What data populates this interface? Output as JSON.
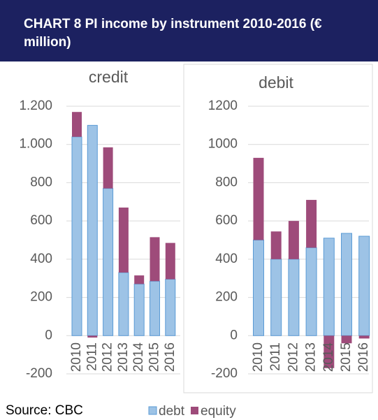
{
  "title": "CHART 8   PI income by instrument 2010-2016 (€ million)",
  "source": "Source: CBC",
  "chart_data": [
    {
      "type": "bar",
      "stacked": true,
      "title": "credit",
      "categories": [
        "2010",
        "2011",
        "2012",
        "2013",
        "2014",
        "2015",
        "2016"
      ],
      "series": [
        {
          "name": "debt",
          "color": "#9dc3e6",
          "values": [
            1040,
            1100,
            770,
            330,
            270,
            285,
            295
          ]
        },
        {
          "name": "equity",
          "color": "#9e4b7a",
          "values": [
            130,
            -10,
            215,
            340,
            45,
            230,
            190
          ]
        }
      ],
      "ylim": [
        -200,
        1200
      ],
      "yticks": [
        -200,
        0,
        200,
        400,
        600,
        800,
        {
          "value": 1000,
          "label": "1.000"
        },
        {
          "value": 1200,
          "label": "1.200"
        }
      ],
      "grid": true
    },
    {
      "type": "bar",
      "stacked": true,
      "title": "debit",
      "categories": [
        "2010",
        "2011",
        "2012",
        "2013",
        "2014",
        "2015",
        "2016"
      ],
      "series": [
        {
          "name": "debt",
          "color": "#9dc3e6",
          "values": [
            500,
            400,
            400,
            460,
            510,
            535,
            520
          ]
        },
        {
          "name": "equity",
          "color": "#9e4b7a",
          "values": [
            430,
            145,
            200,
            250,
            -170,
            -40,
            -15
          ]
        }
      ],
      "ylim": [
        -200,
        1200
      ],
      "yticks": [
        -200,
        0,
        200,
        400,
        600,
        800,
        1000,
        1200
      ],
      "grid": true
    }
  ]
}
